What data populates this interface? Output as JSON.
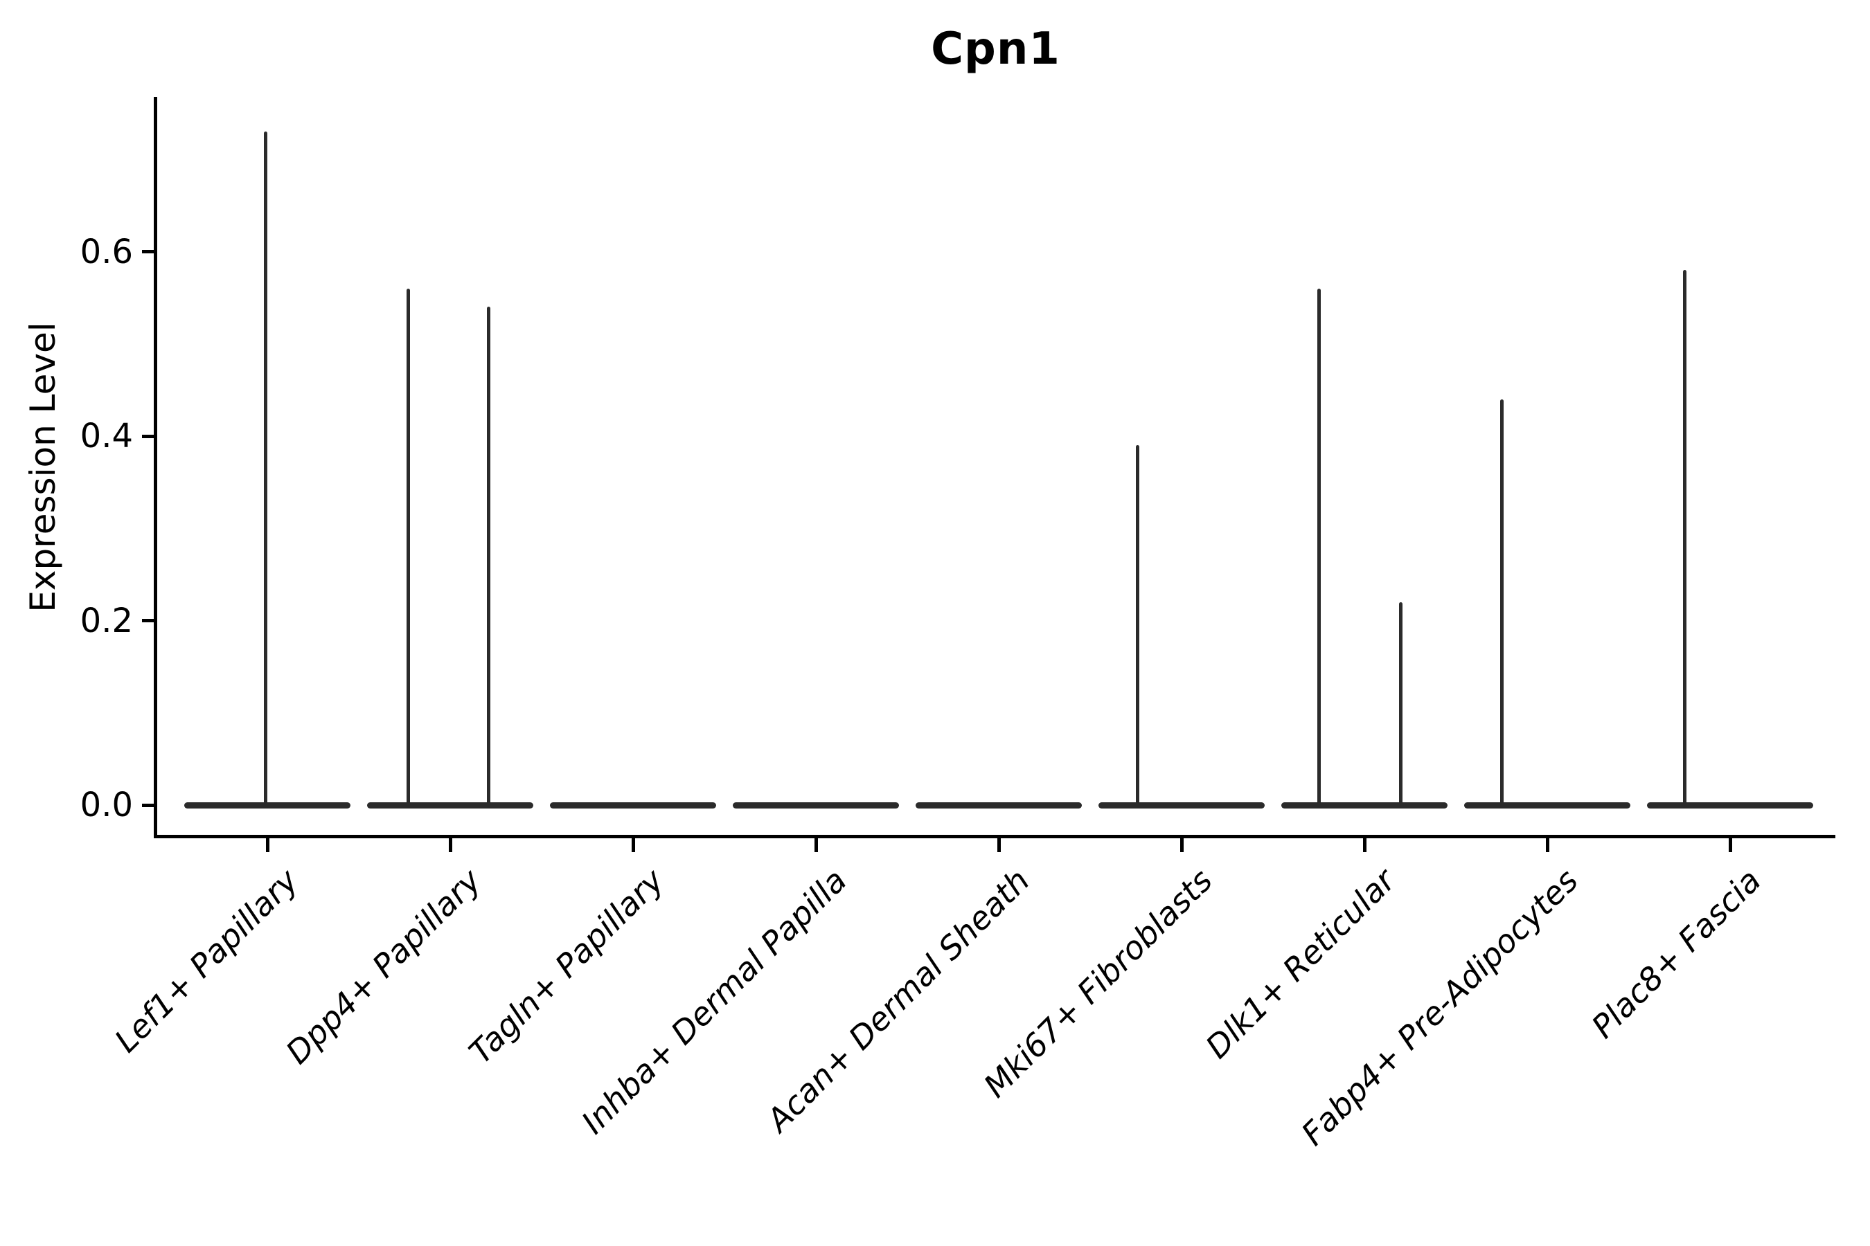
{
  "title": "Cpn1",
  "y_axis": {
    "label": "Expression Level",
    "tick_labels": [
      "0.0",
      "0.2",
      "0.4",
      "0.6"
    ]
  },
  "x_axis": {
    "tick_labels": [
      "Lef1+ Papillary",
      "Dpp4+ Papillary",
      "Tagln+ Papillary",
      "Inhba+ Dermal Papilla",
      "Acan+ Dermal Sheath",
      "Mki67+ Fibroblasts",
      "Dlk1+ Reticular",
      "Fabp4+ Pre-Adipocytes",
      "Plac8+ Fascia"
    ]
  },
  "chart_data": {
    "type": "violin",
    "title": "Cpn1",
    "xlabel": "",
    "ylabel": "Expression Level",
    "ylim": [
      -0.03,
      0.77
    ],
    "yticks": [
      0.0,
      0.2,
      0.4,
      0.6
    ],
    "grid": false,
    "legend": null,
    "orientation": "vertical",
    "categories": [
      "Lef1+ Papillary",
      "Dpp4+ Papillary",
      "Tagln+ Papillary",
      "Inhba+ Dermal Papilla",
      "Acan+ Dermal Sheath",
      "Mki67+ Fibroblasts",
      "Dlk1+ Reticular",
      "Fabp4+ Pre-Adipocytes",
      "Plac8+ Fascia"
    ],
    "violins": [
      {
        "category": "Lef1+ Papillary",
        "zero_band": true,
        "band_width_frac": 0.91,
        "spikes": [
          {
            "value": 0.73,
            "dx_frac": -0.01
          }
        ]
      },
      {
        "category": "Dpp4+ Papillary",
        "zero_band": true,
        "band_width_frac": 0.91,
        "spikes": [
          {
            "value": 0.56,
            "dx_frac": -0.23
          },
          {
            "value": 0.54,
            "dx_frac": 0.21
          }
        ]
      },
      {
        "category": "Tagln+ Papillary",
        "zero_band": true,
        "band_width_frac": 0.91,
        "spikes": []
      },
      {
        "category": "Inhba+ Dermal Papilla",
        "zero_band": true,
        "band_width_frac": 0.91,
        "spikes": []
      },
      {
        "category": "Acan+ Dermal Sheath",
        "zero_band": true,
        "band_width_frac": 0.91,
        "spikes": []
      },
      {
        "category": "Mki67+ Fibroblasts",
        "zero_band": true,
        "band_width_frac": 0.91,
        "spikes": [
          {
            "value": 0.39,
            "dx_frac": -0.24
          }
        ]
      },
      {
        "category": "Dlk1+ Reticular",
        "zero_band": true,
        "band_width_frac": 0.91,
        "spikes": [
          {
            "value": 0.56,
            "dx_frac": -0.25
          },
          {
            "value": 0.22,
            "dx_frac": 0.2
          }
        ]
      },
      {
        "category": "Fabp4+ Pre-Adipocytes",
        "zero_band": true,
        "band_width_frac": 0.91,
        "spikes": [
          {
            "value": 0.44,
            "dx_frac": -0.25
          }
        ]
      },
      {
        "category": "Plac8+ Fascia",
        "zero_band": true,
        "band_width_frac": 0.91,
        "spikes": [
          {
            "value": 0.58,
            "dx_frac": -0.25
          }
        ]
      }
    ],
    "style": {
      "violin_color": "#2b2b2b",
      "spine_color": "#000000",
      "text_color": "#000000",
      "background": "#ffffff"
    },
    "notes": "Expression is ~0 for nearly all cells in every cluster (flat violin bands at 0); thin vertical density spikes mark rare expressing cells."
  }
}
